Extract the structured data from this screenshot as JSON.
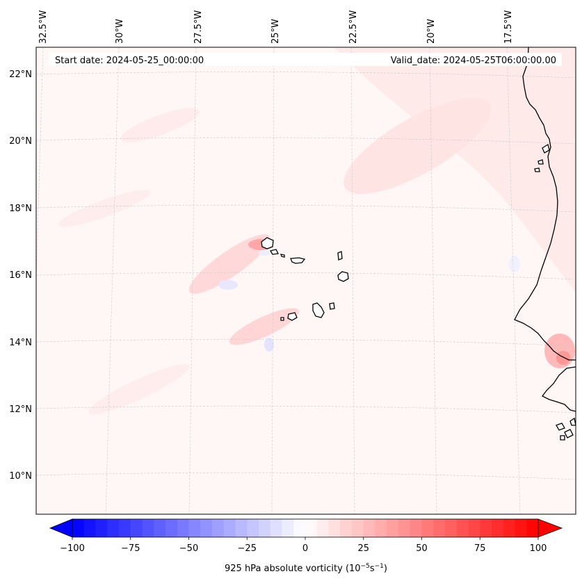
{
  "map": {
    "top_labels": [
      "32.5°W",
      "30°W",
      "27.5°W",
      "25°W",
      "22.5°W",
      "20°W",
      "17.5°W"
    ],
    "left_labels": [
      "22°N",
      "20°N",
      "18°N",
      "16°N",
      "14°N",
      "12°N",
      "10°N"
    ]
  },
  "info": {
    "start_date": "Start date: 2024-05-25_00:00:00",
    "valid_date": "Valid_date: 2024-05-25T06:00:00.00"
  },
  "colorbar": {
    "ticks": [
      "−100",
      "−75",
      "−50",
      "−25",
      "0",
      "25",
      "50",
      "75",
      "100"
    ],
    "values": [
      -100,
      -75,
      -50,
      -25,
      0,
      25,
      50,
      75,
      100
    ],
    "label_prefix": "925 hPa absolute vorticity (10",
    "label_exp1": "−5",
    "label_mid": "s",
    "label_exp2": "−1",
    "label_suffix": ")",
    "range": [
      -100,
      100
    ],
    "colors": {
      "min": "#0000ff",
      "mid": "#ffffff",
      "max": "#ff0000"
    }
  },
  "colors": {
    "background_field": "#fff6f6",
    "coastline": "#000000",
    "grid": "#c8c8c8"
  }
}
